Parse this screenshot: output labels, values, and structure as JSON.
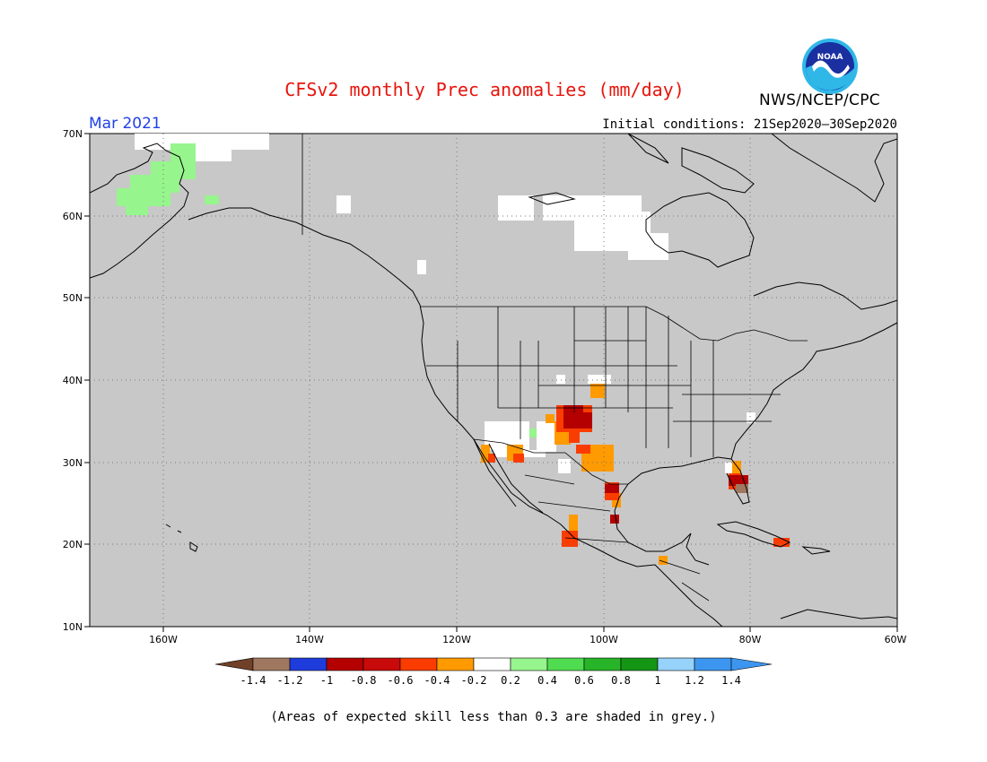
{
  "title": "CFSv2 monthly Prec anomalies (mm/day)",
  "month_label": "Mar 2021",
  "initial_conditions": "Initial conditions: 21Sep2020–30Sep2020",
  "agency": "NWS/NCEP/CPC",
  "logo_text": "NOAA",
  "footnote": "(Areas of expected skill less than 0.3 are shaded in grey.)",
  "map": {
    "lat_labels": [
      "70N",
      "60N",
      "50N",
      "40N",
      "30N",
      "20N",
      "10N"
    ],
    "lon_labels": [
      "160W",
      "140W",
      "120W",
      "100W",
      "80W",
      "60W"
    ],
    "lon_range": [
      -170,
      -60
    ],
    "lat_range": [
      10,
      70
    ],
    "grid": true,
    "background_color": "#c8c8c8"
  },
  "colorbar": {
    "ticks": [
      "-1.4",
      "-1.2",
      "-1",
      "-0.8",
      "-0.6",
      "-0.4",
      "-0.2",
      "0.2",
      "0.4",
      "0.6",
      "0.8",
      "1",
      "1.2",
      "1.4"
    ],
    "colors": [
      "#704028",
      "#a07860",
      "#1e3cdc",
      "#b40000",
      "#c80a0a",
      "#fa3c00",
      "#ff9a00",
      "#ffffff",
      "#96f58c",
      "#50dc50",
      "#28b428",
      "#149614",
      "#96d2fa",
      "#3c96f0",
      "#3c96f0"
    ]
  }
}
